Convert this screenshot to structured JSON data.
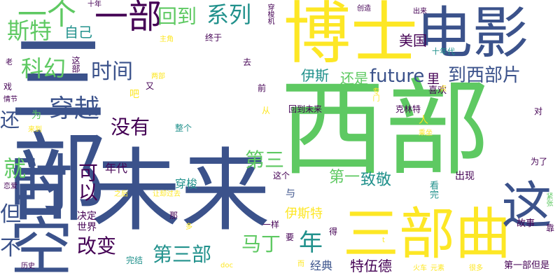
{
  "colors": {
    "background": "#ffffff",
    "palette": [
      "#440154",
      "#3b528b",
      "#21918c",
      "#5ec962",
      "#fde725"
    ]
  },
  "words": [
    {
      "text": "博士",
      "weight": 100,
      "color": "#fde725",
      "vertical": false
    },
    {
      "text": "电影",
      "weight": 80,
      "color": "#3b528b",
      "vertical": false
    },
    {
      "text": "西部",
      "weight": 100,
      "color": "#5ec962",
      "vertical": false
    },
    {
      "text": "三部",
      "weight": 100,
      "color": "#3b528b",
      "vertical": true
    },
    {
      "text": "未来",
      "weight": 90,
      "color": "#3b528b",
      "vertical": false
    },
    {
      "text": "时空",
      "weight": 90,
      "color": "#3b528b",
      "vertical": true
    },
    {
      "text": "三部曲",
      "weight": 70,
      "color": "#fde725",
      "vertical": false
    },
    {
      "text": "这",
      "weight": 60,
      "color": "#3b528b",
      "vertical": true
    },
    {
      "text": "一部",
      "weight": 40,
      "color": "#440154",
      "vertical": false
    },
    {
      "text": "一个",
      "weight": 35,
      "color": "#5ec962",
      "vertical": false
    },
    {
      "text": "斯特",
      "weight": 28,
      "color": "#5ec962",
      "vertical": false
    },
    {
      "text": "自己",
      "weight": 20,
      "color": "#21918c",
      "vertical": false
    },
    {
      "text": "回到",
      "weight": 25,
      "color": "#5ec962",
      "vertical": false
    },
    {
      "text": "系列",
      "weight": 28,
      "color": "#21918c",
      "vertical": false
    },
    {
      "text": "科幻",
      "weight": 28,
      "color": "#5ec962",
      "vertical": false
    },
    {
      "text": "时间",
      "weight": 28,
      "color": "#3b528b",
      "vertical": false
    },
    {
      "text": "美国",
      "weight": 18,
      "color": "#440154",
      "vertical": false
    },
    {
      "text": "future",
      "weight": 24,
      "color": "#3b528b",
      "vertical": false
    },
    {
      "text": "到西部片",
      "weight": 24,
      "color": "#3b528b",
      "vertical": false
    },
    {
      "text": "伊斯",
      "weight": 20,
      "color": "#21918c",
      "vertical": false
    },
    {
      "text": "还是",
      "weight": 18,
      "color": "#5ec962",
      "vertical": false
    },
    {
      "text": "穿越",
      "weight": 30,
      "color": "#3b528b",
      "vertical": false
    },
    {
      "text": "还",
      "weight": 26,
      "color": "#3b528b",
      "vertical": false
    },
    {
      "text": "没有",
      "weight": 26,
      "color": "#440154",
      "vertical": false
    },
    {
      "text": "第三",
      "weight": 26,
      "color": "#5ec962",
      "vertical": false
    },
    {
      "text": "就",
      "weight": 26,
      "color": "#5ec962",
      "vertical": false
    },
    {
      "text": "可以",
      "weight": 24,
      "color": "#440154",
      "vertical": true
    },
    {
      "text": "年代",
      "weight": 16,
      "color": "#440154",
      "vertical": false
    },
    {
      "text": "第一",
      "weight": 18,
      "color": "#5ec962",
      "vertical": false
    },
    {
      "text": "致敬",
      "weight": 18,
      "color": "#21918c",
      "vertical": false
    },
    {
      "text": "年",
      "weight": 30,
      "color": "#21918c",
      "vertical": false
    },
    {
      "text": "但",
      "weight": 28,
      "color": "#3b528b",
      "vertical": false
    },
    {
      "text": "不",
      "weight": 28,
      "color": "#3b528b",
      "vertical": false
    },
    {
      "text": "改变",
      "weight": 26,
      "color": "#440154",
      "vertical": false
    },
    {
      "text": "第三部",
      "weight": 28,
      "color": "#21918c",
      "vertical": false
    },
    {
      "text": "马丁",
      "weight": 26,
      "color": "#5ec962",
      "vertical": false
    },
    {
      "text": "伊斯特",
      "weight": 18,
      "color": "#fde725",
      "vertical": false
    },
    {
      "text": "经典",
      "weight": 16,
      "color": "#3b528b",
      "vertical": false
    },
    {
      "text": "特伍德",
      "weight": 18,
      "color": "#440154",
      "vertical": false
    },
    {
      "text": "穿梭",
      "weight": 16,
      "color": "#21918c",
      "vertical": false
    },
    {
      "text": "决定",
      "weight": 14,
      "color": "#440154",
      "vertical": false
    },
    {
      "text": "世界",
      "weight": 14,
      "color": "#440154",
      "vertical": false
    },
    {
      "text": "完结",
      "weight": 12,
      "color": "#21918c",
      "vertical": false
    },
    {
      "text": "出现",
      "weight": 14,
      "color": "#440154",
      "vertical": false
    },
    {
      "text": "看完",
      "weight": 13,
      "color": "#21918c",
      "vertical": true
    },
    {
      "text": "故事",
      "weight": 13,
      "color": "#440154",
      "vertical": false
    },
    {
      "text": "第一部但是",
      "weight": 13,
      "color": "#440154",
      "vertical": false
    },
    {
      "text": "里",
      "weight": 18,
      "color": "#440154",
      "vertical": false
    },
    {
      "text": "喜欢",
      "weight": 12,
      "color": "#440154",
      "vertical": false
    },
    {
      "text": "十年代",
      "weight": 11,
      "color": "#21918c",
      "vertical": false
    },
    {
      "text": "克林特",
      "weight": 12,
      "color": "#440154",
      "vertical": false
    },
    {
      "text": "回到未来",
      "weight": 12,
      "color": "#440154",
      "vertical": false
    },
    {
      "text": "前",
      "weight": 12,
      "color": "#440154",
      "vertical": false
    },
    {
      "text": "去",
      "weight": 12,
      "color": "#440154",
      "vertical": false
    },
    {
      "text": "又",
      "weight": 12,
      "color": "#440154",
      "vertical": false
    },
    {
      "text": "两部",
      "weight": 10,
      "color": "#fde725",
      "vertical": false
    },
    {
      "text": "吧",
      "weight": 12,
      "color": "#fde725",
      "vertical": false
    },
    {
      "text": "为",
      "weight": 14,
      "color": "#5ec962",
      "vertical": false
    },
    {
      "text": "戏",
      "weight": 12,
      "color": "#440154",
      "vertical": false
    },
    {
      "text": "情节",
      "weight": 10,
      "color": "#440154",
      "vertical": false
    },
    {
      "text": "来到",
      "weight": 10,
      "color": "#fde725",
      "vertical": false
    },
    {
      "text": "恋爱",
      "weight": 10,
      "color": "#440154",
      "vertical": false
    },
    {
      "text": "历史",
      "weight": 10,
      "color": "#440154",
      "vertical": false
    },
    {
      "text": "老",
      "weight": 10,
      "color": "#440154",
      "vertical": false
    },
    {
      "text": "这部",
      "weight": 12,
      "color": "#440154",
      "vertical": true
    },
    {
      "text": "主角",
      "weight": 10,
      "color": "#fde725",
      "vertical": false
    },
    {
      "text": "十年",
      "weight": 10,
      "color": "#440154",
      "vertical": false
    },
    {
      "text": "终于",
      "weight": 12,
      "color": "#440154",
      "vertical": false
    },
    {
      "text": "穿梭机",
      "weight": 10,
      "color": "#440154",
      "vertical": true
    },
    {
      "text": "创造",
      "weight": 10,
      "color": "#440154",
      "vertical": false
    },
    {
      "text": "出来",
      "weight": 10,
      "color": "#440154",
      "vertical": false
    },
    {
      "text": "专门",
      "weight": 10,
      "color": "#fde725",
      "vertical": true
    },
    {
      "text": "点",
      "weight": 10,
      "color": "#fde725",
      "vertical": false
    },
    {
      "text": "对",
      "weight": 12,
      "color": "#440154",
      "vertical": false
    },
    {
      "text": "乘坐",
      "weight": 10,
      "color": "#fde725",
      "vertical": false
    },
    {
      "text": "为了",
      "weight": 12,
      "color": "#440154",
      "vertical": false
    },
    {
      "text": "紧张",
      "weight": 10,
      "color": "#5ec962",
      "vertical": true
    },
    {
      "text": "靠",
      "weight": 12,
      "color": "#440154",
      "vertical": false
    },
    {
      "text": "人",
      "weight": 14,
      "color": "#fde725",
      "vertical": false
    },
    {
      "text": "整个",
      "weight": 12,
      "color": "#21918c",
      "vertical": false
    },
    {
      "text": "这个",
      "weight": 12,
      "color": "#440154",
      "vertical": false
    },
    {
      "text": "与",
      "weight": 14,
      "color": "#3b528b",
      "vertical": false
    },
    {
      "text": "之后",
      "weight": 10,
      "color": "#fde725",
      "vertical": false
    },
    {
      "text": "让",
      "weight": 10,
      "color": "#fde725",
      "vertical": false
    },
    {
      "text": "却过去",
      "weight": 10,
      "color": "#fde725",
      "vertical": false
    },
    {
      "text": "那",
      "weight": 12,
      "color": "#440154",
      "vertical": false
    },
    {
      "text": "多",
      "weight": 10,
      "color": "#fde725",
      "vertical": false
    },
    {
      "text": "一样",
      "weight": 12,
      "color": "#440154",
      "vertical": false
    },
    {
      "text": "要",
      "weight": 12,
      "color": "#440154",
      "vertical": false
    },
    {
      "text": "得",
      "weight": 12,
      "color": "#440154",
      "vertical": false
    },
    {
      "text": "而",
      "weight": 10,
      "color": "#fde725",
      "vertical": false
    },
    {
      "text": "火车",
      "weight": 10,
      "color": "#fde725",
      "vertical": false
    },
    {
      "text": "元素",
      "weight": 10,
      "color": "#fde725",
      "vertical": false
    },
    {
      "text": "很多",
      "weight": 10,
      "color": "#fde725",
      "vertical": false
    },
    {
      "text": "doc",
      "weight": 10,
      "color": "#fde725",
      "vertical": false
    },
    {
      "text": "t",
      "weight": 10,
      "color": "#fde725",
      "vertical": false
    },
    {
      "text": "从",
      "weight": 12,
      "color": "#fde725",
      "vertical": false
    }
  ]
}
